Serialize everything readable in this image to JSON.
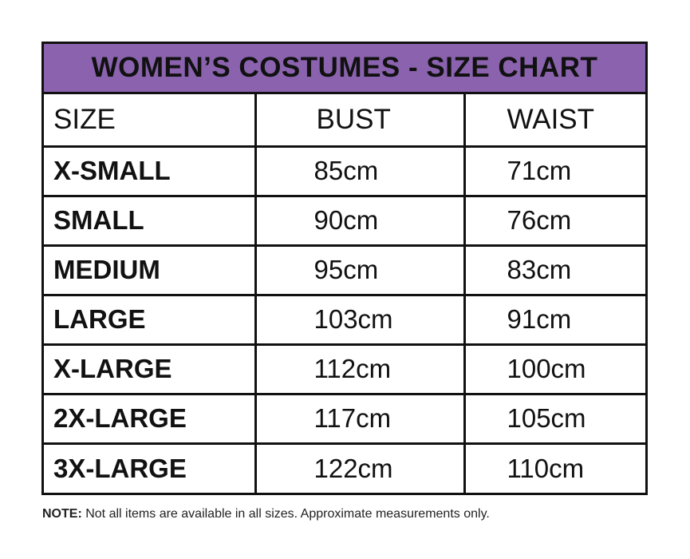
{
  "title": "WOMEN’S COSTUMES - SIZE CHART",
  "headers": [
    "SIZE",
    "BUST",
    "WAIST"
  ],
  "rows": [
    [
      "X-SMALL",
      "85cm",
      "71cm"
    ],
    [
      "SMALL",
      "90cm",
      "76cm"
    ],
    [
      "MEDIUM",
      "95cm",
      "83cm"
    ],
    [
      "LARGE",
      "103cm",
      "91cm"
    ],
    [
      "X-LARGE",
      "112cm",
      "100cm"
    ],
    [
      "2X-LARGE",
      "117cm",
      "105cm"
    ],
    [
      "3X-LARGE",
      "122cm",
      "110cm"
    ]
  ],
  "note": {
    "label": "NOTE:",
    "text": " Not all items are available in all sizes. Approximate measurements only."
  },
  "colors": {
    "title_bg": "#8a62ad",
    "border": "#111111"
  }
}
